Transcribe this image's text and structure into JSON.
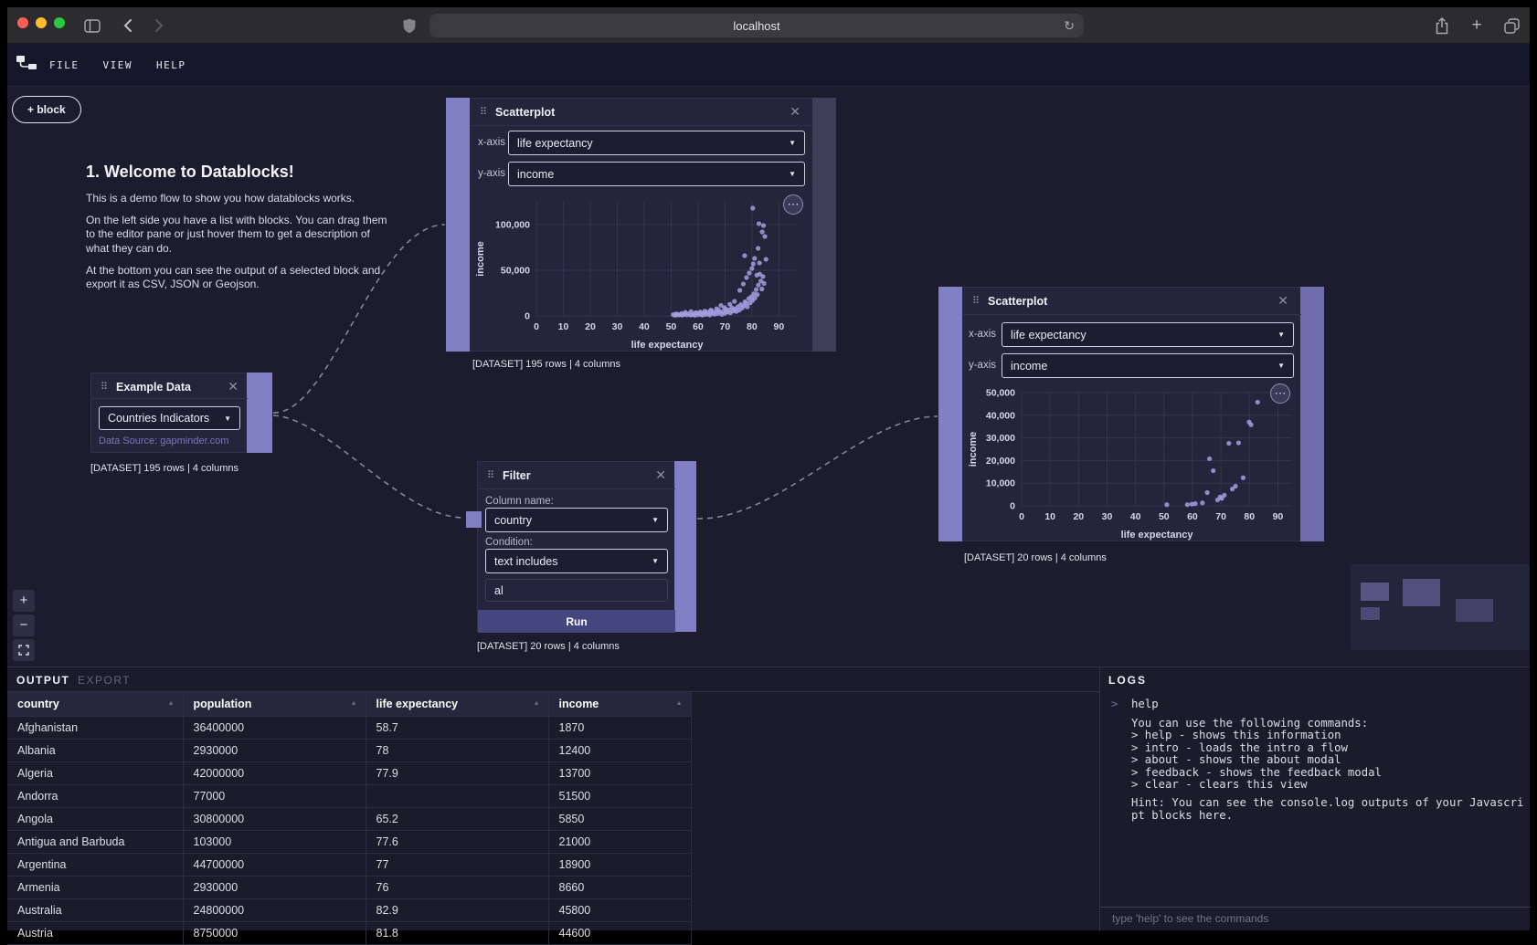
{
  "browser": {
    "address_text": "localhost",
    "icons": [
      "close-traffic",
      "minimize-traffic",
      "zoom-traffic",
      "sidebar-toggle",
      "back",
      "forward",
      "privacy-shield",
      "reload",
      "share",
      "new-tab",
      "tab-overview"
    ]
  },
  "menu_bar": {
    "items": [
      {
        "label": "FILE"
      },
      {
        "label": "VIEW"
      },
      {
        "label": "HELP"
      }
    ]
  },
  "toolbar": {
    "add_block_label": "+ block"
  },
  "welcome": {
    "title": "1. Welcome to Datablocks!",
    "paragraphs": [
      "This is a demo flow to show you how datablocks works.",
      "On the left side you have a list with blocks. You can drag them to the editor pane or just hover them to get a description of what they can do.",
      "At the bottom you can see the output of a selected block and export it as CSV, JSON or Geojson."
    ]
  },
  "nodes": {
    "scatterplot1": {
      "title": "Scatterplot",
      "x_label": "x-axis",
      "x_value": "life expectancy",
      "y_label": "y-axis",
      "y_value": "income",
      "caption": "[DATASET] 195 rows | 4 columns"
    },
    "example_data": {
      "title": "Example Data",
      "selected_dataset": "Countries Indicators",
      "source_note": "Data Source: gapminder.com",
      "caption": "[DATASET] 195 rows | 4 columns"
    },
    "filter": {
      "title": "Filter",
      "column_label": "Column name:",
      "column_value": "country",
      "condition_label": "Condition:",
      "condition_value": "text includes",
      "query_value": "al",
      "run_label": "Run",
      "caption": "[DATASET] 20 rows | 4 columns"
    },
    "scatterplot2": {
      "title": "Scatterplot",
      "x_label": "x-axis",
      "x_value": "life expectancy",
      "y_label": "y-axis",
      "y_value": "income",
      "caption": "[DATASET] 20 rows | 4 columns"
    }
  },
  "chart_data": [
    {
      "id": "chart1",
      "type": "scatter",
      "title": "",
      "xlabel": "life expectancy",
      "ylabel": "income",
      "xlim": [
        0,
        97
      ],
      "ylim": [
        0,
        125000
      ],
      "xticks": [
        0,
        10,
        20,
        30,
        40,
        50,
        60,
        70,
        80,
        90
      ],
      "yticks": [
        0,
        50000,
        100000
      ],
      "grid": true,
      "legend": "none",
      "points": [
        [
          50.8,
          1400
        ],
        [
          51.5,
          600
        ],
        [
          51.8,
          2100
        ],
        [
          52.3,
          2000
        ],
        [
          52.8,
          950
        ],
        [
          53.5,
          1300
        ],
        [
          53.9,
          2700
        ],
        [
          54.2,
          800
        ],
        [
          55,
          1700
        ],
        [
          55.3,
          3900
        ],
        [
          55.8,
          1100
        ],
        [
          56.5,
          2300
        ],
        [
          57.2,
          900
        ],
        [
          57.4,
          4800
        ],
        [
          57.8,
          1500
        ],
        [
          58.3,
          1870
        ],
        [
          58.8,
          700
        ],
        [
          59.2,
          3600
        ],
        [
          59.4,
          2800
        ],
        [
          60,
          1200
        ],
        [
          60.5,
          3400
        ],
        [
          60.9,
          4300
        ],
        [
          61,
          1900
        ],
        [
          61.6,
          800
        ],
        [
          62.2,
          2600
        ],
        [
          62.5,
          5200
        ],
        [
          62.8,
          1500
        ],
        [
          63.3,
          4100
        ],
        [
          63.9,
          2200
        ],
        [
          64.4,
          1000
        ],
        [
          64.7,
          6300
        ],
        [
          65,
          5850
        ],
        [
          65.5,
          3100
        ],
        [
          66.1,
          1800
        ],
        [
          66.6,
          4600
        ],
        [
          66.9,
          7900
        ],
        [
          67.2,
          2500
        ],
        [
          67.7,
          6200
        ],
        [
          68.3,
          3700
        ],
        [
          68.5,
          11500
        ],
        [
          68.8,
          1600
        ],
        [
          69.4,
          5100
        ],
        [
          69.8,
          9200
        ],
        [
          70,
          2900
        ],
        [
          70.4,
          7300
        ],
        [
          70.9,
          4200
        ],
        [
          71.5,
          6700
        ],
        [
          71.8,
          12800
        ],
        [
          72,
          3300
        ],
        [
          72.6,
          8900
        ],
        [
          73.1,
          5500
        ],
        [
          73.5,
          16000
        ],
        [
          73.7,
          7700
        ],
        [
          74.2,
          4800
        ],
        [
          74.8,
          10200
        ],
        [
          75.3,
          6400
        ],
        [
          75.5,
          28000
        ],
        [
          75.9,
          12400
        ],
        [
          76.4,
          8660
        ],
        [
          76.8,
          35000
        ],
        [
          77,
          11000
        ],
        [
          77.3,
          66000
        ],
        [
          77.4,
          15500
        ],
        [
          77.9,
          13700
        ],
        [
          78,
          42000
        ],
        [
          78.3,
          9800
        ],
        [
          78.8,
          18900
        ],
        [
          79,
          47000
        ],
        [
          79.3,
          14200
        ],
        [
          79.8,
          21000
        ],
        [
          80,
          52000
        ],
        [
          80.2,
          16800
        ],
        [
          80.3,
          118000
        ],
        [
          80.5,
          57000
        ],
        [
          80.7,
          24300
        ],
        [
          81,
          63000
        ],
        [
          81.1,
          19600
        ],
        [
          81.6,
          28900
        ],
        [
          81.8,
          44600
        ],
        [
          82,
          23400
        ],
        [
          82.3,
          74000
        ],
        [
          82.4,
          33800
        ],
        [
          82.6,
          101000
        ],
        [
          82.8,
          58000
        ],
        [
          82.9,
          45800
        ],
        [
          83.3,
          38200
        ],
        [
          83.7,
          29500
        ],
        [
          83.8,
          92000
        ],
        [
          84.1,
          43100
        ],
        [
          84.3,
          99000
        ],
        [
          84.5,
          35600
        ],
        [
          84.8,
          87000
        ],
        [
          85.2,
          62000
        ]
      ]
    },
    {
      "id": "chart2",
      "type": "scatter",
      "title": "",
      "xlabel": "life expectancy",
      "ylabel": "income",
      "xlim": [
        0,
        95
      ],
      "ylim": [
        0,
        50000
      ],
      "xticks": [
        0,
        10,
        20,
        30,
        40,
        50,
        60,
        70,
        80,
        90
      ],
      "yticks": [
        0,
        10000,
        20000,
        30000,
        40000,
        50000
      ],
      "grid": true,
      "legend": "none",
      "points": [
        [
          51,
          500
        ],
        [
          58.2,
          520
        ],
        [
          59.8,
          750
        ],
        [
          61,
          950
        ],
        [
          63.5,
          1300
        ],
        [
          65.2,
          5850
        ],
        [
          66,
          20800
        ],
        [
          67.3,
          15500
        ],
        [
          68.8,
          2600
        ],
        [
          69.7,
          3900
        ],
        [
          70.3,
          3300
        ],
        [
          71.2,
          4700
        ],
        [
          72.8,
          27600
        ],
        [
          74,
          7400
        ],
        [
          75.1,
          8660
        ],
        [
          76.2,
          27800
        ],
        [
          77.8,
          12400
        ],
        [
          79.9,
          37000
        ],
        [
          80.6,
          35800
        ],
        [
          82.9,
          45800
        ]
      ]
    }
  ],
  "output_panel": {
    "tabs": [
      {
        "label": "OUTPUT"
      },
      {
        "label": "EXPORT"
      }
    ],
    "table": {
      "columns": [
        "country",
        "population",
        "life expectancy",
        "income"
      ],
      "rows": [
        [
          "Afghanistan",
          "36400000",
          "58.7",
          "1870"
        ],
        [
          "Albania",
          "2930000",
          "78",
          "12400"
        ],
        [
          "Algeria",
          "42000000",
          "77.9",
          "13700"
        ],
        [
          "Andorra",
          "77000",
          "",
          "51500"
        ],
        [
          "Angola",
          "30800000",
          "65.2",
          "5850"
        ],
        [
          "Antigua and Barbuda",
          "103000",
          "77.6",
          "21000"
        ],
        [
          "Argentina",
          "44700000",
          "77",
          "18900"
        ],
        [
          "Armenia",
          "2930000",
          "76",
          "8660"
        ],
        [
          "Australia",
          "24800000",
          "82.9",
          "45800"
        ],
        [
          "Austria",
          "8750000",
          "81.8",
          "44600"
        ]
      ]
    }
  },
  "logs_panel": {
    "title": "LOGS",
    "command": "help",
    "response_lines": [
      "You can use the following commands:",
      "> help - shows this information",
      "> intro - loads the intro a flow",
      "> about - shows the about modal",
      "> feedback - shows the feedback modal",
      "> clear - clears this view"
    ],
    "hint": "Hint: You can see the console.log outputs of your Javascript blocks here.",
    "input_placeholder": "type 'help' to see the commands"
  },
  "colors": {
    "accent_purple": "#8280c4",
    "dim_purple_strip": "#3e3e58",
    "mid_purple_strip": "#6f6dab",
    "point_purple": "#a29fe2",
    "run_button": "#45457f",
    "edge": "#9898ae",
    "traffic_red": "#ff5f57",
    "traffic_yellow": "#febc2e",
    "traffic_green": "#28c840"
  }
}
